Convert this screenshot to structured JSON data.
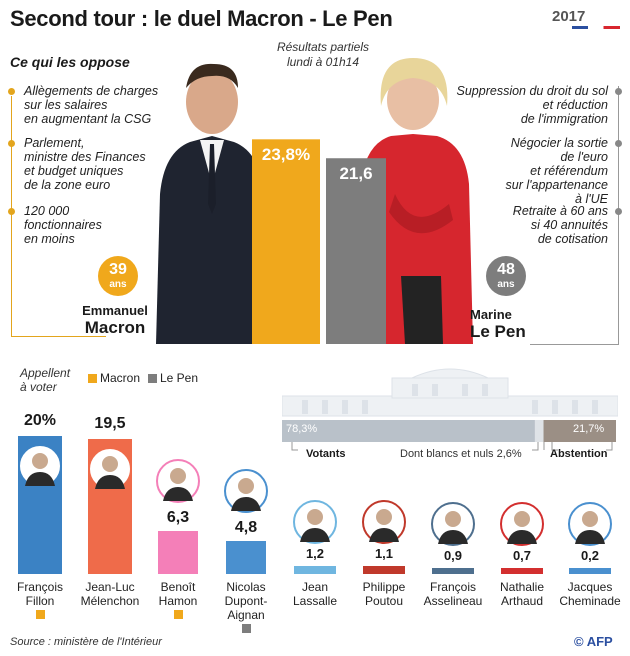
{
  "header": {
    "title": "Second tour : le duel Macron - Le Pen",
    "logo_year": "2017",
    "subtitle": "Ce qui les oppose",
    "partial_line1": "Résultats partiels",
    "partial_line2": "lundi à 01h14"
  },
  "macron": {
    "first_name": "Emmanuel",
    "last_name": "Macron",
    "age": "39",
    "age_unit": "ans",
    "result_label": "23,8%",
    "points": [
      [
        "Allègements de charges",
        "sur les salaires",
        "en augmentant la CSG"
      ],
      [
        "Parlement,",
        "ministre des Finances",
        "et budget uniques",
        "de la zone euro"
      ],
      [
        "120 000",
        "fonctionnaires",
        "en moins"
      ]
    ]
  },
  "lepen": {
    "first_name": "Marine",
    "last_name": "Le Pen",
    "age": "48",
    "age_unit": "ans",
    "result_label": "21,6",
    "points": [
      [
        "Suppression du droit du sol",
        "et réduction",
        "de l'immigration"
      ],
      [
        "Négocier la sortie",
        "de l'euro",
        "et référendum",
        "sur l'appartenance",
        "à l'UE"
      ],
      [
        "Retraite à 60 ans",
        "si 40 annuités",
        "de cotisation"
      ]
    ]
  },
  "appeal": {
    "label_line1": "Appellent",
    "label_line2": "à voter",
    "legend_macron": "Macron",
    "legend_lepen": "Le Pen"
  },
  "turnout": {
    "votants_label": "Votants",
    "blancs_label": "Dont blancs et nuls",
    "blancs_value": "2,6%",
    "abstention_label": "Abstention",
    "votants_value_label": "78,3%",
    "abstention_value_label": "21,7%"
  },
  "colors": {
    "macron": "#f0a81c",
    "lepen": "#7d7d7d",
    "fillon": "#3b82c4",
    "melenchon": "#ef6b4a",
    "hamon": "#f47fb8",
    "dupont": "#4a90cf"
  },
  "source": "Source : ministère de l'Intérieur",
  "credit": "© AFP",
  "chart_data": [
    {
      "type": "bar",
      "categories": [
        "Emmanuel Macron",
        "Marine Le Pen"
      ],
      "values": [
        23.8,
        21.6
      ],
      "value_labels": [
        "23,8%",
        "21,6"
      ]
    },
    {
      "type": "bar",
      "categories": [
        "François Fillon",
        "Jean-Luc Mélenchon",
        "Benoît Hamon",
        "Nicolas Dupont-Aignan",
        "Jean Lassalle",
        "Philippe Poutou",
        "François Asselineau",
        "Nathalie Arthaud",
        "Jacques Cheminade"
      ],
      "values": [
        20.0,
        19.5,
        6.3,
        4.8,
        1.2,
        1.1,
        0.9,
        0.7,
        0.2
      ],
      "value_labels": [
        "20%",
        "19,5",
        "6,3",
        "4,8",
        "1,2",
        "1,1",
        "0,9",
        "0,7",
        "0,2"
      ],
      "name_lines": [
        [
          "François",
          "Fillon"
        ],
        [
          "Jean-Luc",
          "Mélenchon"
        ],
        [
          "Benoît",
          "Hamon"
        ],
        [
          "Nicolas",
          "Dupont-",
          "Aignan"
        ],
        [
          "Jean",
          "Lassalle"
        ],
        [
          "Philippe",
          "Poutou"
        ],
        [
          "François",
          "Asselineau"
        ],
        [
          "Nathalie",
          "Arthaud"
        ],
        [
          "Jacques",
          "Cheminade"
        ]
      ],
      "calls_to_vote": [
        "Macron",
        "",
        "Macron",
        "Le Pen",
        "",
        "",
        "",
        "",
        ""
      ],
      "colors": [
        "#3b82c4",
        "#ef6b4a",
        "#f47fb8",
        "#4a90cf",
        "#6fb6e0",
        "#c0392b",
        "#4e6f8e",
        "#d32f2f",
        "#4a90cf"
      ]
    },
    {
      "type": "bar",
      "categories": [
        "Votants",
        "Abstention"
      ],
      "values": [
        78.3,
        21.7
      ],
      "value_labels": [
        "78,3%",
        "21,7%"
      ]
    }
  ]
}
